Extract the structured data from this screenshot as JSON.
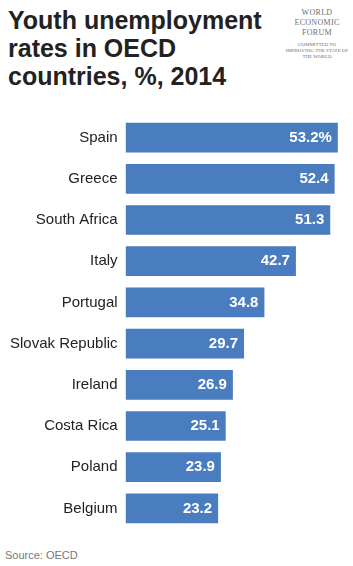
{
  "chart_data": {
    "type": "bar",
    "title": "Youth unemployment rates in OECD countries, %, 2014",
    "annotations": [
      "Source: OECD",
      "WORLD ECONOMIC FORUM",
      "COMMITTED TO IMPROVING THE STATE OF THE WORLD"
    ],
    "categories": [
      "Spain",
      "Greece",
      "South Africa",
      "Italy",
      "Portugal",
      "Slovak Republic",
      "Ireland",
      "Costa Rica",
      "Poland",
      "Belgium"
    ],
    "values": [
      53.2,
      52.4,
      51.3,
      42.7,
      34.8,
      29.7,
      26.9,
      25.1,
      23.9,
      23.2
    ],
    "value_labels": [
      "53.2%",
      "52.4",
      "51.3",
      "42.7",
      "34.8",
      "29.7",
      "26.9",
      "25.1",
      "23.9",
      "23.2"
    ],
    "color": "#4a7dbf",
    "orientation": "horizontal",
    "xlim": [
      0,
      55
    ],
    "grid": false,
    "data_labels": true,
    "tick_labels": "y"
  }
}
